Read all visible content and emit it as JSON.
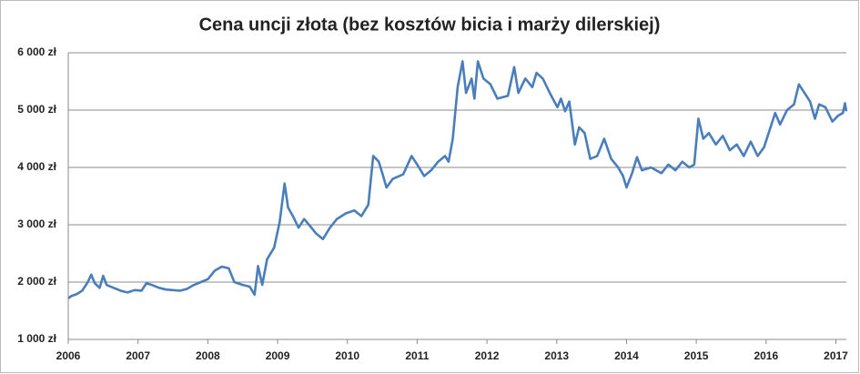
{
  "chart_data": {
    "type": "line",
    "title": "Cena uncji złota (bez kosztów bicia i marży dilerskiej)",
    "x": [
      2006.0,
      2006.05,
      2006.12,
      2006.2,
      2006.28,
      2006.33,
      2006.38,
      2006.45,
      2006.5,
      2006.55,
      2006.65,
      2006.75,
      2006.85,
      2006.95,
      2007.05,
      2007.12,
      2007.2,
      2007.3,
      2007.4,
      2007.5,
      2007.6,
      2007.7,
      2007.8,
      2007.9,
      2008.0,
      2008.1,
      2008.2,
      2008.3,
      2008.38,
      2008.5,
      2008.6,
      2008.67,
      2008.72,
      2008.78,
      2008.85,
      2008.95,
      2009.03,
      2009.1,
      2009.15,
      2009.22,
      2009.3,
      2009.38,
      2009.45,
      2009.55,
      2009.65,
      2009.75,
      2009.85,
      2009.98,
      2010.1,
      2010.2,
      2010.3,
      2010.37,
      2010.45,
      2010.5,
      2010.56,
      2010.65,
      2010.8,
      2010.92,
      2011.0,
      2011.1,
      2011.2,
      2011.3,
      2011.4,
      2011.45,
      2011.51,
      2011.58,
      2011.65,
      2011.7,
      2011.78,
      2011.82,
      2011.87,
      2011.95,
      2012.05,
      2012.15,
      2012.3,
      2012.39,
      2012.45,
      2012.55,
      2012.65,
      2012.71,
      2012.8,
      2012.9,
      2013.01,
      2013.06,
      2013.12,
      2013.18,
      2013.26,
      2013.32,
      2013.4,
      2013.48,
      2013.58,
      2013.68,
      2013.78,
      2013.88,
      2013.95,
      2014.0,
      2014.08,
      2014.15,
      2014.22,
      2014.35,
      2014.5,
      2014.6,
      2014.7,
      2014.8,
      2014.9,
      2014.97,
      2015.03,
      2015.1,
      2015.18,
      2015.28,
      2015.38,
      2015.48,
      2015.58,
      2015.68,
      2015.78,
      2015.88,
      2015.97,
      2016.05,
      2016.13,
      2016.2,
      2016.3,
      2016.4,
      2016.47,
      2016.55,
      2016.63,
      2016.7,
      2016.76,
      2016.85,
      2016.95,
      2017.03,
      2017.1,
      2017.13,
      2017.15
    ],
    "series": [
      {
        "color": "#4a7ebb",
        "values": [
          1720,
          1760,
          1790,
          1850,
          2000,
          2130,
          1980,
          1900,
          2110,
          1950,
          1900,
          1850,
          1820,
          1860,
          1850,
          1980,
          1950,
          1900,
          1870,
          1860,
          1850,
          1880,
          1950,
          2000,
          2050,
          2200,
          2270,
          2240,
          2000,
          1950,
          1920,
          1780,
          2280,
          1950,
          2400,
          2600,
          3050,
          3720,
          3300,
          3150,
          2950,
          3100,
          3000,
          2850,
          2750,
          2950,
          3100,
          3200,
          3250,
          3150,
          3350,
          4200,
          4100,
          3900,
          3650,
          3800,
          3880,
          4200,
          4050,
          3850,
          3950,
          4100,
          4200,
          4100,
          4500,
          5400,
          5850,
          5300,
          5550,
          5200,
          5850,
          5550,
          5450,
          5200,
          5250,
          5750,
          5300,
          5550,
          5400,
          5650,
          5550,
          5300,
          5050,
          5200,
          4980,
          5150,
          4400,
          4700,
          4600,
          4150,
          4200,
          4500,
          4150,
          4000,
          3850,
          3650,
          3900,
          4180,
          3950,
          4000,
          3900,
          4050,
          3950,
          4100,
          4000,
          4050,
          4850,
          4500,
          4600,
          4400,
          4550,
          4300,
          4400,
          4200,
          4450,
          4200,
          4350,
          4650,
          4950,
          4750,
          5000,
          5100,
          5450,
          5300,
          5150,
          4850,
          5100,
          5050,
          4800,
          4900,
          4950,
          5120,
          4980
        ]
      }
    ],
    "xlim": [
      2006,
      2017.15
    ],
    "xticks": [
      2006,
      2007,
      2008,
      2009,
      2010,
      2011,
      2012,
      2013,
      2014,
      2015,
      2016,
      2017
    ],
    "ylim": [
      1000,
      6000
    ],
    "yticks": [
      {
        "value": 1000,
        "label": "1 000 zł"
      },
      {
        "value": 2000,
        "label": "2 000 zł"
      },
      {
        "value": 3000,
        "label": "3 000 zł"
      },
      {
        "value": 4000,
        "label": "4 000 zł"
      },
      {
        "value": 5000,
        "label": "5 000 zł"
      },
      {
        "value": 6000,
        "label": "6 000 zł"
      }
    ],
    "grid": true
  }
}
